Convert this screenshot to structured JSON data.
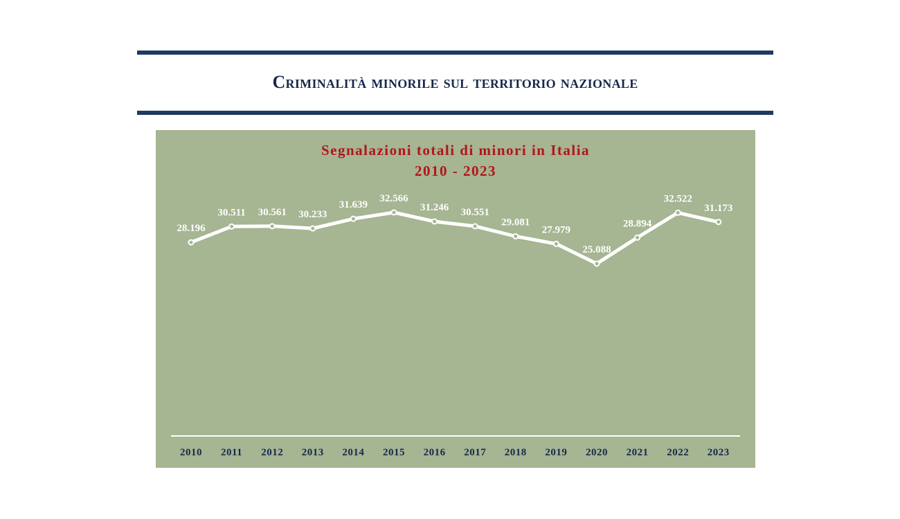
{
  "page": {
    "title": "Criminalità minorile sul territorio nazionale"
  },
  "chart_data": {
    "type": "line",
    "title_line1": "Segnalazioni totali di minori in Italia",
    "title_line2": "2010  - 2023",
    "categories": [
      "2010",
      "2011",
      "2012",
      "2013",
      "2014",
      "2015",
      "2016",
      "2017",
      "2018",
      "2019",
      "2020",
      "2021",
      "2022",
      "2023"
    ],
    "values": [
      28196,
      30511,
      30561,
      30233,
      31639,
      32566,
      31246,
      30551,
      29081,
      27979,
      25088,
      28894,
      32522,
      31173
    ],
    "value_labels": [
      "28.196",
      "30.511",
      "30.561",
      "30.233",
      "31.639",
      "32.566",
      "31.246",
      "30.551",
      "29.081",
      "27.979",
      "25.088",
      "28.894",
      "32.522",
      "31.173"
    ],
    "grid": false,
    "legend": "none",
    "colors": {
      "panel": "#a6b592",
      "line": "#ffffff",
      "title": "#b3141b",
      "axis_labels": "#16294a"
    }
  }
}
